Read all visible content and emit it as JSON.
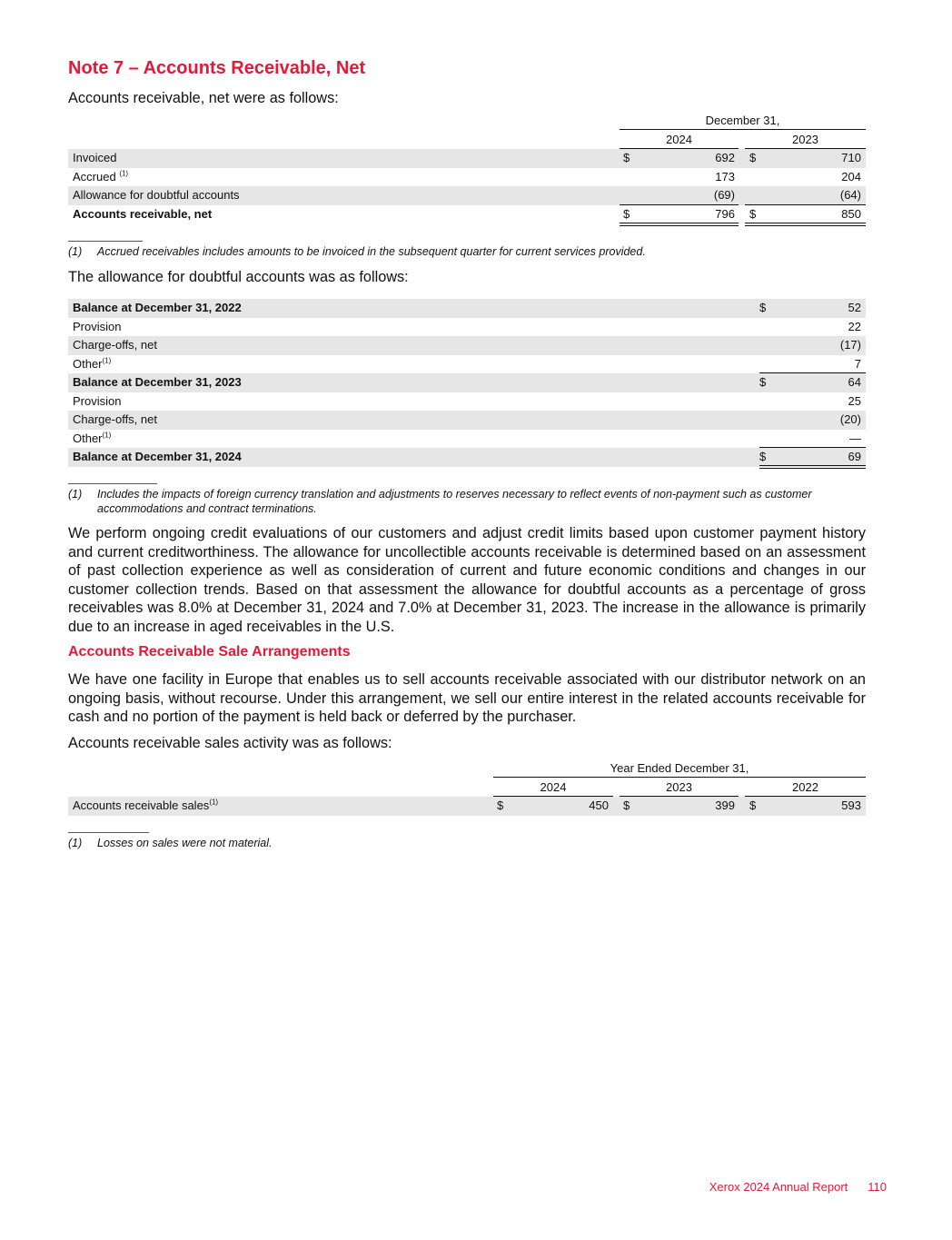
{
  "title": "Note 7 – Accounts Receivable, Net",
  "intro1": "Accounts receivable, net were as follows:",
  "table1": {
    "period_header": "December 31,",
    "years": [
      "2024",
      "2023"
    ],
    "rows": [
      {
        "label": "Invoiced",
        "sup": "",
        "cur": [
          "$",
          "$"
        ],
        "values": [
          "692",
          "710"
        ]
      },
      {
        "label": "Accrued ",
        "sup": "(1)",
        "cur": [
          "",
          ""
        ],
        "values": [
          "173",
          "204"
        ]
      },
      {
        "label": "Allowance for doubtful accounts",
        "sup": "",
        "cur": [
          "",
          ""
        ],
        "values": [
          "(69)",
          "(64)"
        ]
      },
      {
        "label": "Accounts receivable, net",
        "sup": "",
        "cur": [
          "$",
          "$"
        ],
        "values": [
          "796",
          "850"
        ],
        "bold": true
      }
    ],
    "footnote_num": "(1)",
    "footnote": "Accrued receivables includes amounts to be invoiced in the subsequent quarter for current services provided."
  },
  "intro2": "The allowance for doubtful accounts was as follows:",
  "table2": {
    "rows": [
      {
        "label": "Balance at December 31, 2022",
        "sup": "",
        "cur": "$",
        "value": "52",
        "bold": true
      },
      {
        "label": "Provision",
        "sup": "",
        "cur": "",
        "value": "22"
      },
      {
        "label": "Charge-offs, net",
        "sup": "",
        "cur": "",
        "value": "(17)"
      },
      {
        "label": "Other",
        "sup": "(1)",
        "cur": "",
        "value": "7"
      },
      {
        "label": "Balance at December 31, 2023",
        "sup": "",
        "cur": "$",
        "value": "64",
        "bold": true
      },
      {
        "label": "Provision",
        "sup": "",
        "cur": "",
        "value": "25"
      },
      {
        "label": "Charge-offs, net",
        "sup": "",
        "cur": "",
        "value": "(20)"
      },
      {
        "label": "Other",
        "sup": "(1)",
        "cur": "",
        "value": "—"
      },
      {
        "label": "Balance at December 31, 2024",
        "sup": "",
        "cur": "$",
        "value": "69",
        "bold": true
      }
    ],
    "footnote_num": "(1)",
    "footnote": "Includes the impacts of foreign currency translation and adjustments to reserves necessary to reflect events of non-payment such as customer accommodations and contract terminations."
  },
  "paragraph1": "We perform ongoing credit evaluations of our customers and adjust credit limits based upon customer payment history and current creditworthiness. The allowance for uncollectible accounts receivable is determined based on an assessment of past collection experience as well as consideration of current and future economic conditions and changes in our customer collection trends. Based on that assessment the allowance for doubtful accounts as a percentage of gross receivables was 8.0% at December 31, 2024 and 7.0% at December 31, 2023. The increase in the allowance is primarily due to an increase in aged receivables in the U.S.",
  "subheading": "Accounts Receivable Sale Arrangements",
  "paragraph2": "We have one facility in Europe that enables us to sell accounts receivable associated with our distributor network on an ongoing basis, without recourse. Under this arrangement, we sell our entire interest in the related accounts receivable for cash and no portion of the payment is held back or deferred by the purchaser.",
  "intro3": "Accounts receivable sales activity was as follows:",
  "table3": {
    "period_header": "Year Ended December 31,",
    "years": [
      "2024",
      "2023",
      "2022"
    ],
    "rows": [
      {
        "label": "Accounts receivable sales",
        "sup": "(1)",
        "cur": [
          "$",
          "$",
          "$"
        ],
        "values": [
          "450",
          "399",
          "593"
        ]
      }
    ],
    "footnote_num": "(1)",
    "footnote": "Losses on sales were not material."
  },
  "footer": {
    "report": "Xerox 2024 Annual Report",
    "page": "110"
  },
  "colors": {
    "accent": "#e31937",
    "row_shade": "#e6e6e6"
  }
}
